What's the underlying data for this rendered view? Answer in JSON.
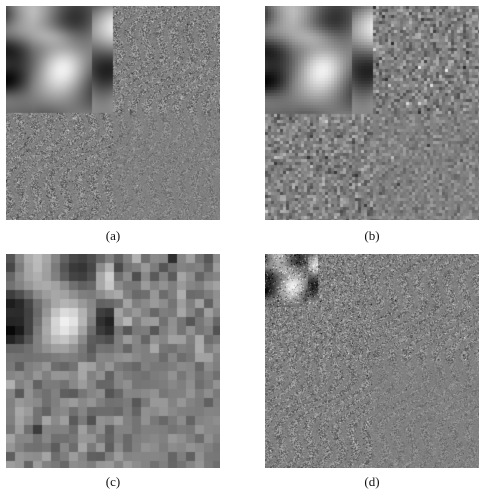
{
  "figure": {
    "panels": [
      {
        "id": "a",
        "caption": "(a)",
        "description_levels": 1,
        "block": 1
      },
      {
        "id": "b",
        "caption": "(b)",
        "description_levels": 1,
        "block": 3
      },
      {
        "id": "c",
        "caption": "(c)",
        "description_levels": 1,
        "block": 9
      },
      {
        "id": "d",
        "caption": "(d)",
        "description_levels": 2,
        "block": 1
      }
    ]
  },
  "colors": {
    "background": "#ffffff",
    "mid_gray": "#808080"
  }
}
